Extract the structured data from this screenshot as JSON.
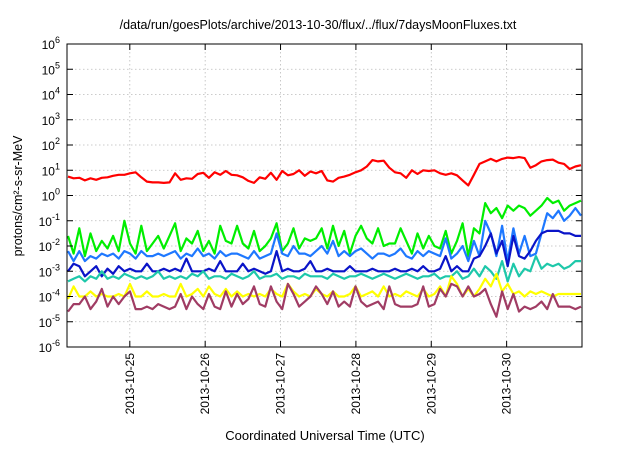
{
  "chart_data": {
    "type": "line",
    "title": "/data/run/goesPlots/archive/2013-10-30/flux/../flux/7daysMoonFluxes.txt",
    "xlabel": "Coordinated Universal Time (UTC)",
    "ylabel": "protons/cm²-s-sr-MeV",
    "yscale": "log",
    "ylim_exponents": [
      -6,
      6
    ],
    "ytick_exponents": [
      -6,
      -5,
      -4,
      -3,
      -2,
      -1,
      0,
      1,
      2,
      3,
      4,
      5,
      6
    ],
    "xlim": [
      "2013-10-24T04:00",
      "2013-10-31T00:00"
    ],
    "xtick_labels": [
      "2013-10-25",
      "2013-10-26",
      "2013-10-27",
      "2013-10-28",
      "2013-10-29",
      "2013-10-30"
    ],
    "grid": true,
    "legend": "none",
    "series": [
      {
        "color": "#ff0000",
        "log10_values": [
          0.75,
          0.68,
          0.7,
          0.6,
          0.68,
          0.62,
          0.7,
          0.72,
          0.78,
          0.82,
          0.82,
          0.88,
          0.92,
          0.72,
          0.55,
          0.52,
          0.52,
          0.5,
          0.52,
          0.88,
          0.62,
          0.68,
          0.66,
          0.85,
          0.9,
          0.7,
          0.92,
          0.82,
          0.97,
          0.82,
          0.8,
          0.72,
          0.58,
          0.5,
          0.72,
          0.66,
          0.9,
          0.62,
          0.97,
          0.8,
          0.85,
          1.0,
          0.78,
          0.95,
          0.88,
          0.97,
          0.6,
          0.55,
          0.7,
          0.75,
          0.82,
          0.92,
          1.0,
          1.15,
          1.4,
          1.35,
          1.38,
          1.1,
          0.92,
          0.88,
          0.7,
          1.0,
          0.85,
          1.0,
          0.97,
          1.0,
          0.88,
          0.82,
          0.88,
          0.8,
          0.6,
          0.4,
          0.82,
          1.25,
          1.35,
          1.45,
          1.35,
          1.45,
          1.5,
          1.48,
          1.52,
          1.48,
          1.1,
          1.2,
          1.35,
          1.4,
          1.42,
          1.3,
          1.25,
          1.05,
          1.15,
          1.2
        ]
      },
      {
        "color": "#00ee00",
        "log10_values": [
          -1.6,
          -2.3,
          -1.3,
          -2.4,
          -1.5,
          -2.2,
          -1.8,
          -2.1,
          -1.6,
          -2.2,
          -1.0,
          -1.9,
          -2.3,
          -1.2,
          -2.2,
          -1.9,
          -1.6,
          -2.1,
          -1.6,
          -1.1,
          -2.2,
          -1.7,
          -1.9,
          -1.4,
          -2.2,
          -1.8,
          -2.3,
          -1.2,
          -1.8,
          -1.9,
          -1.2,
          -1.9,
          -2.1,
          -1.4,
          -2.2,
          -2.0,
          -1.7,
          -1.1,
          -2.2,
          -1.9,
          -1.3,
          -2.1,
          -1.7,
          -1.8,
          -1.7,
          -1.3,
          -2.1,
          -1.2,
          -2.0,
          -1.4,
          -2.3,
          -1.6,
          -1.2,
          -1.7,
          -1.9,
          -1.3,
          -2.0,
          -1.9,
          -1.9,
          -1.3,
          -1.8,
          -2.3,
          -1.5,
          -2.1,
          -1.6,
          -2.0,
          -2.1,
          -1.4,
          -2.3,
          -1.8,
          -1.1,
          -2.4,
          -1.3,
          -1.5,
          -0.3,
          -0.7,
          -0.5,
          -0.9,
          -0.4,
          -0.6,
          -0.4,
          -0.5,
          -0.8,
          -0.6,
          -0.4,
          -0.1,
          -0.3,
          -0.2,
          -0.6,
          -0.4,
          -0.3,
          -0.2
        ]
      },
      {
        "color": "#1e78ff",
        "log10_values": [
          -2.2,
          -2.6,
          -2.2,
          -2.6,
          -2.4,
          -2.5,
          -2.3,
          -2.4,
          -2.3,
          -2.5,
          -2.2,
          -2.3,
          -2.5,
          -2.2,
          -2.4,
          -2.4,
          -2.3,
          -2.4,
          -2.3,
          -2.2,
          -2.5,
          -2.3,
          -2.4,
          -2.1,
          -2.4,
          -2.3,
          -2.5,
          -2.2,
          -2.4,
          -2.3,
          -2.3,
          -2.4,
          -2.5,
          -2.2,
          -2.5,
          -2.4,
          -2.3,
          -1.5,
          -2.3,
          -2.4,
          -2.0,
          -2.3,
          -2.3,
          -2.4,
          -2.2,
          -2.0,
          -2.3,
          -1.8,
          -2.4,
          -2.2,
          -2.4,
          -2.2,
          -2.1,
          -2.3,
          -2.5,
          -2.3,
          -2.3,
          -2.4,
          -2.3,
          -2.1,
          -2.4,
          -2.5,
          -2.2,
          -2.4,
          -2.2,
          -2.3,
          -2.4,
          -1.7,
          -2.5,
          -2.3,
          -2.0,
          -2.6,
          -1.8,
          -2.4,
          -1.0,
          -1.5,
          -2.4,
          -1.2,
          -2.6,
          -1.3,
          -2.3,
          -1.6,
          -2.4,
          -2.3,
          -1.5,
          -0.7,
          -0.9,
          -0.6,
          -1.0,
          -0.8,
          -0.5,
          -0.8
        ]
      },
      {
        "color": "#0a14c8",
        "log10_values": [
          -3.0,
          -2.7,
          -2.8,
          -3.2,
          -3.0,
          -2.8,
          -3.2,
          -2.9,
          -3.1,
          -2.8,
          -3.0,
          -2.9,
          -3.0,
          -3.0,
          -2.7,
          -3.0,
          -3.0,
          -2.9,
          -3.0,
          -2.9,
          -3.0,
          -2.5,
          -3.0,
          -3.0,
          -3.0,
          -2.9,
          -3.0,
          -2.6,
          -3.0,
          -3.0,
          -3.0,
          -2.7,
          -3.0,
          -2.9,
          -3.0,
          -3.1,
          -3.0,
          -2.2,
          -3.0,
          -2.9,
          -3.0,
          -3.0,
          -2.9,
          -2.6,
          -3.0,
          -3.0,
          -2.9,
          -3.0,
          -3.0,
          -3.0,
          -2.8,
          -3.0,
          -3.0,
          -3.0,
          -2.9,
          -3.0,
          -3.0,
          -3.0,
          -2.9,
          -3.0,
          -3.0,
          -2.9,
          -3.0,
          -2.8,
          -3.0,
          -3.0,
          -2.9,
          -2.4,
          -3.0,
          -2.8,
          -3.0,
          -3.0,
          -2.5,
          -2.4,
          -2.0,
          -1.5,
          -2.3,
          -1.8,
          -2.8,
          -1.6,
          -2.4,
          -2.5,
          -2.2,
          -1.8,
          -1.5,
          -1.4,
          -1.4,
          -1.4,
          -1.5,
          -1.5,
          -1.6,
          -1.6
        ]
      },
      {
        "color": "#1ec8aa",
        "log10_values": [
          -3.4,
          -3.3,
          -3.2,
          -3.4,
          -3.2,
          -3.3,
          -3.0,
          -3.3,
          -3.2,
          -3.3,
          -3.1,
          -3.2,
          -3.3,
          -3.2,
          -3.3,
          -3.2,
          -3.0,
          -3.3,
          -3.2,
          -3.3,
          -3.2,
          -3.3,
          -3.1,
          -3.2,
          -3.0,
          -3.3,
          -3.2,
          -3.2,
          -3.3,
          -3.1,
          -3.2,
          -3.3,
          -3.2,
          -3.0,
          -3.3,
          -3.2,
          -3.2,
          -3.1,
          -3.3,
          -3.2,
          -3.2,
          -3.3,
          -3.1,
          -3.2,
          -3.2,
          -3.2,
          -3.3,
          -3.1,
          -3.2,
          -3.3,
          -3.2,
          -3.2,
          -3.1,
          -3.2,
          -3.3,
          -3.2,
          -3.1,
          -3.2,
          -3.3,
          -3.2,
          -3.1,
          -3.2,
          -3.3,
          -3.2,
          -3.2,
          -3.1,
          -3.3,
          -3.2,
          -3.2,
          -3.0,
          -3.3,
          -3.2,
          -2.9,
          -3.2,
          -2.8,
          -3.0,
          -3.3,
          -2.6,
          -3.4,
          -2.7,
          -3.2,
          -2.9,
          -3.0,
          -2.4,
          -2.9,
          -2.7,
          -2.8,
          -2.7,
          -2.9,
          -2.8,
          -2.6,
          -2.6
        ]
      },
      {
        "color": "#ffff00",
        "log10_values": [
          -4.1,
          -3.6,
          -4.0,
          -4.0,
          -3.8,
          -4.0,
          -3.9,
          -4.0,
          -4.0,
          -3.9,
          -4.0,
          -3.5,
          -4.0,
          -4.0,
          -3.8,
          -4.0,
          -4.0,
          -3.9,
          -4.0,
          -4.0,
          -3.5,
          -4.0,
          -3.9,
          -3.7,
          -4.0,
          -3.6,
          -3.9,
          -4.0,
          -3.7,
          -4.0,
          -3.8,
          -4.0,
          -3.9,
          -4.0,
          -3.9,
          -4.0,
          -3.7,
          -3.9,
          -4.0,
          -3.5,
          -3.8,
          -4.0,
          -3.9,
          -4.0,
          -3.7,
          -3.9,
          -4.0,
          -3.8,
          -4.0,
          -4.0,
          -3.9,
          -3.6,
          -4.0,
          -3.9,
          -3.8,
          -4.0,
          -3.6,
          -4.0,
          -3.9,
          -4.0,
          -3.8,
          -3.9,
          -4.0,
          -3.7,
          -4.0,
          -3.9,
          -3.6,
          -4.0,
          -3.2,
          -3.5,
          -4.0,
          -3.7,
          -4.0,
          -3.7,
          -3.3,
          -3.6,
          -3.1,
          -3.8,
          -3.5,
          -3.9,
          -3.8,
          -4.0,
          -3.8,
          -3.9,
          -3.8,
          -3.9,
          -4.0,
          -3.9,
          -3.9,
          -3.9,
          -3.9,
          -3.9
        ]
      },
      {
        "color": "#a03c64",
        "log10_values": [
          -4.6,
          -4.3,
          -4.3,
          -4.0,
          -4.5,
          -4.2,
          -3.7,
          -4.4,
          -4.0,
          -4.3,
          -4.0,
          -3.8,
          -4.5,
          -4.5,
          -4.4,
          -4.5,
          -4.3,
          -4.4,
          -4.5,
          -4.4,
          -3.9,
          -4.5,
          -4.0,
          -4.3,
          -4.5,
          -3.9,
          -4.4,
          -4.5,
          -3.8,
          -4.4,
          -3.9,
          -4.3,
          -4.1,
          -3.6,
          -4.3,
          -4.4,
          -3.6,
          -4.2,
          -4.5,
          -3.5,
          -3.9,
          -4.4,
          -4.2,
          -4.0,
          -3.6,
          -3.9,
          -4.3,
          -3.8,
          -4.4,
          -4.2,
          -4.4,
          -3.6,
          -4.2,
          -4.4,
          -4.3,
          -4.2,
          -4.5,
          -3.6,
          -4.3,
          -4.4,
          -4.4,
          -4.4,
          -4.3,
          -3.6,
          -4.4,
          -4.3,
          -3.7,
          -4.0,
          -3.5,
          -3.6,
          -4.0,
          -3.6,
          -4.0,
          -3.9,
          -3.7,
          -4.3,
          -4.8,
          -3.8,
          -4.5,
          -3.9,
          -4.6,
          -4.4,
          -4.5,
          -4.4,
          -4.2,
          -4.5,
          -3.9,
          -4.4,
          -4.4,
          -4.4,
          -4.5,
          -4.4
        ]
      }
    ]
  }
}
